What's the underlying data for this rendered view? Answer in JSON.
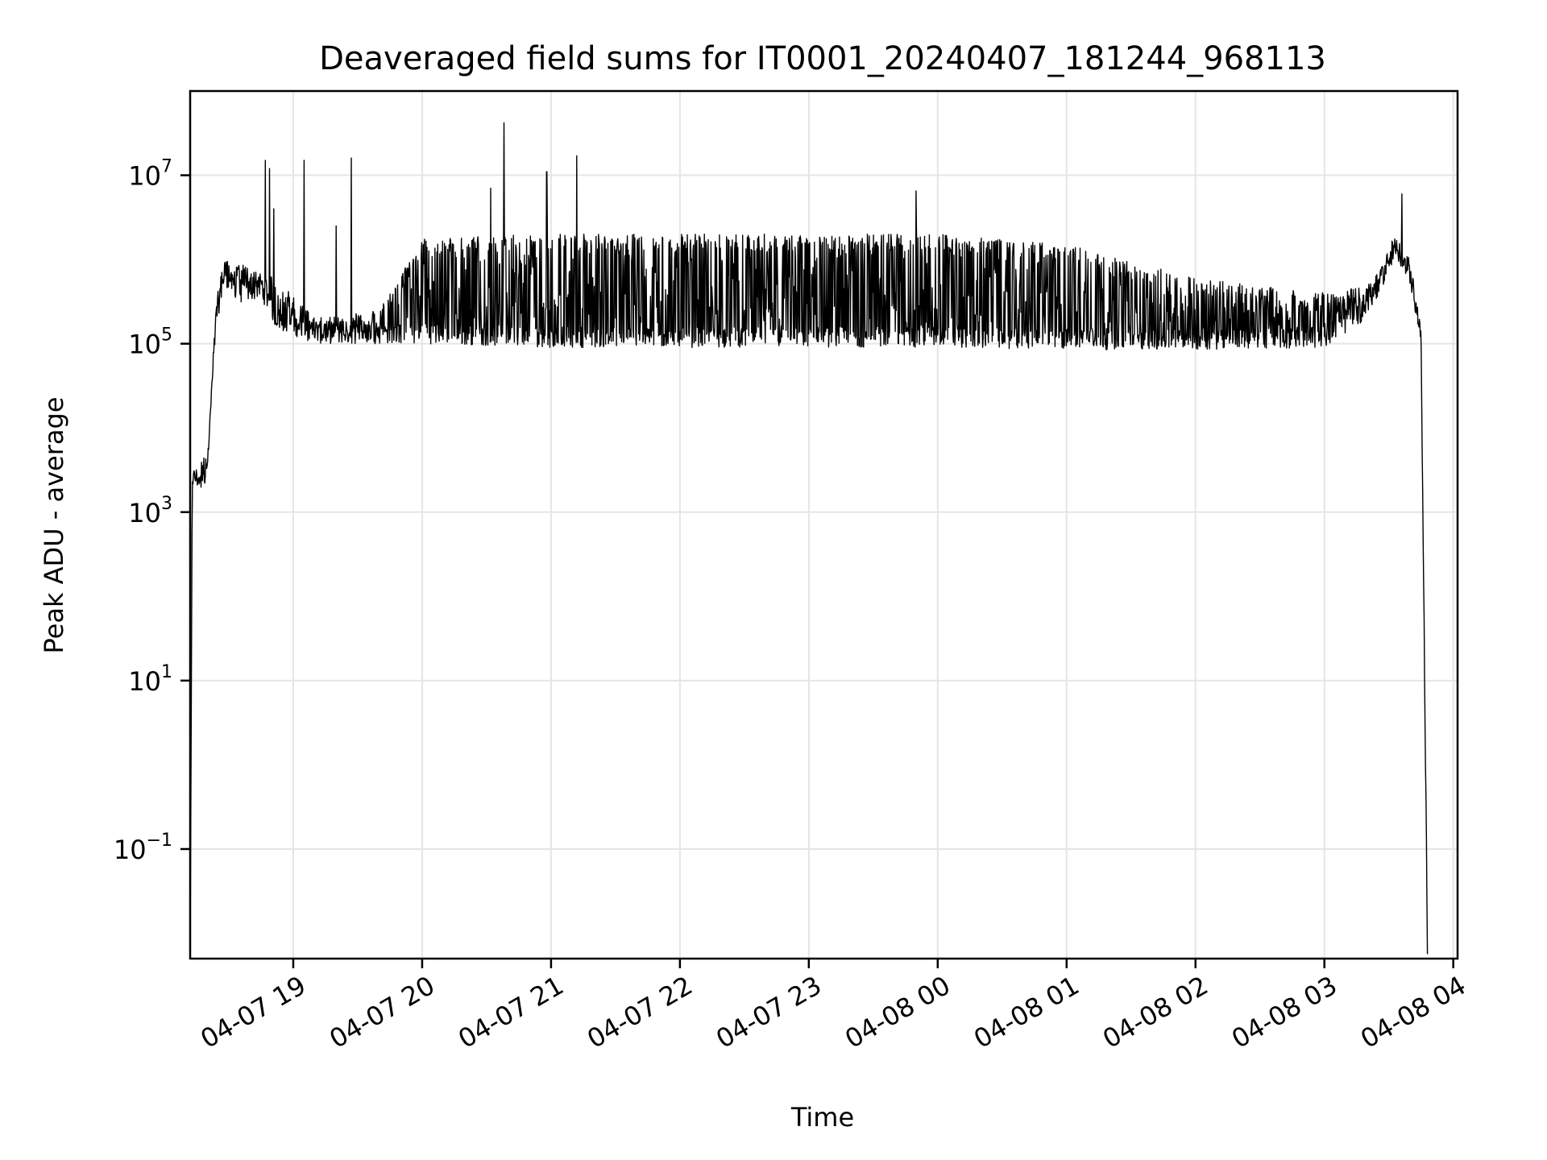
{
  "chart_data": {
    "type": "line",
    "title": "Deaveraged field sums for IT0001_20240407_181244_968113",
    "xlabel": "Time",
    "ylabel": "Peak ADU - average",
    "yscale": "log",
    "grid": true,
    "legend": "none",
    "xlim": [
      "2024-04-07 18:12",
      "2024-04-08 04:02"
    ],
    "ylim": [
      0.005,
      100000000.0
    ],
    "x_ticks": [
      {
        "t": "2024-04-07 19:00",
        "label": "04-07 19"
      },
      {
        "t": "2024-04-07 20:00",
        "label": "04-07 20"
      },
      {
        "t": "2024-04-07 21:00",
        "label": "04-07 21"
      },
      {
        "t": "2024-04-07 22:00",
        "label": "04-07 22"
      },
      {
        "t": "2024-04-07 23:00",
        "label": "04-07 23"
      },
      {
        "t": "2024-04-08 00:00",
        "label": "04-08 00"
      },
      {
        "t": "2024-04-08 01:00",
        "label": "04-08 01"
      },
      {
        "t": "2024-04-08 02:00",
        "label": "04-08 02"
      },
      {
        "t": "2024-04-08 03:00",
        "label": "04-08 03"
      },
      {
        "t": "2024-04-08 04:00",
        "label": "04-08 04"
      }
    ],
    "y_ticks": [
      {
        "value": 0.1,
        "base": "10",
        "exp": "−1"
      },
      {
        "value": 10,
        "base": "10",
        "exp": "1"
      },
      {
        "value": 1000,
        "base": "10",
        "exp": "3"
      },
      {
        "value": 100000,
        "base": "10",
        "exp": "5"
      },
      {
        "value": 10000000,
        "base": "10",
        "exp": "7"
      }
    ],
    "series": [
      {
        "color": "#000000",
        "envelope": [
          {
            "t": "2024-04-07 18:12",
            "low": 0.005,
            "high": 0.005
          },
          {
            "t": "2024-04-07 18:13",
            "low": 2000,
            "high": 3000
          },
          {
            "t": "2024-04-07 18:17",
            "low": 1800,
            "high": 4000
          },
          {
            "t": "2024-04-07 18:20",
            "low": 2500,
            "high": 5000
          },
          {
            "t": "2024-04-07 18:24",
            "low": 150000,
            "high": 300000
          },
          {
            "t": "2024-04-07 18:28",
            "low": 500000,
            "high": 1200000
          },
          {
            "t": "2024-04-07 18:35",
            "low": 300000,
            "high": 900000
          },
          {
            "t": "2024-04-07 18:45",
            "low": 350000,
            "high": 700000
          },
          {
            "t": "2024-04-07 18:52",
            "low": 150000,
            "high": 600000
          },
          {
            "t": "2024-04-07 19:10",
            "low": 100000,
            "high": 200000
          },
          {
            "t": "2024-04-07 19:40",
            "low": 100000,
            "high": 250000
          },
          {
            "t": "2024-04-07 20:00",
            "low": 100000,
            "high": 1800000
          },
          {
            "t": "2024-04-07 21:00",
            "low": 90000,
            "high": 2000000
          },
          {
            "t": "2024-04-07 22:00",
            "low": 90000,
            "high": 2000000
          },
          {
            "t": "2024-04-07 23:00",
            "low": 90000,
            "high": 2000000
          },
          {
            "t": "2024-04-08 00:00",
            "low": 90000,
            "high": 2000000
          },
          {
            "t": "2024-04-08 01:00",
            "low": 85000,
            "high": 1500000
          },
          {
            "t": "2024-04-08 02:00",
            "low": 85000,
            "high": 600000
          },
          {
            "t": "2024-04-08 03:00",
            "low": 90000,
            "high": 400000
          },
          {
            "t": "2024-04-08 03:20",
            "low": 200000,
            "high": 500000
          },
          {
            "t": "2024-04-08 03:33",
            "low": 1000000,
            "high": 2000000
          },
          {
            "t": "2024-04-08 03:40",
            "low": 500000,
            "high": 1000000
          },
          {
            "t": "2024-04-08 03:45",
            "low": 100000,
            "high": 150000
          },
          {
            "t": "2024-04-08 03:48",
            "low": 0.005,
            "high": 0.005
          }
        ],
        "spikes": [
          {
            "t": "2024-04-07 18:47",
            "value": 15000000
          },
          {
            "t": "2024-04-07 18:49",
            "value": 12000000
          },
          {
            "t": "2024-04-07 18:51",
            "value": 4000000
          },
          {
            "t": "2024-04-07 19:05",
            "value": 15000000
          },
          {
            "t": "2024-04-07 19:20",
            "value": 2500000
          },
          {
            "t": "2024-04-07 19:27",
            "value": 16000000
          },
          {
            "t": "2024-04-07 20:32",
            "value": 7000000
          },
          {
            "t": "2024-04-07 20:38",
            "value": 42000000
          },
          {
            "t": "2024-04-07 20:58",
            "value": 11000000
          },
          {
            "t": "2024-04-07 21:12",
            "value": 17000000
          },
          {
            "t": "2024-04-07 23:50",
            "value": 6500000
          },
          {
            "t": "2024-04-08 03:36",
            "value": 6000000
          }
        ]
      }
    ]
  }
}
